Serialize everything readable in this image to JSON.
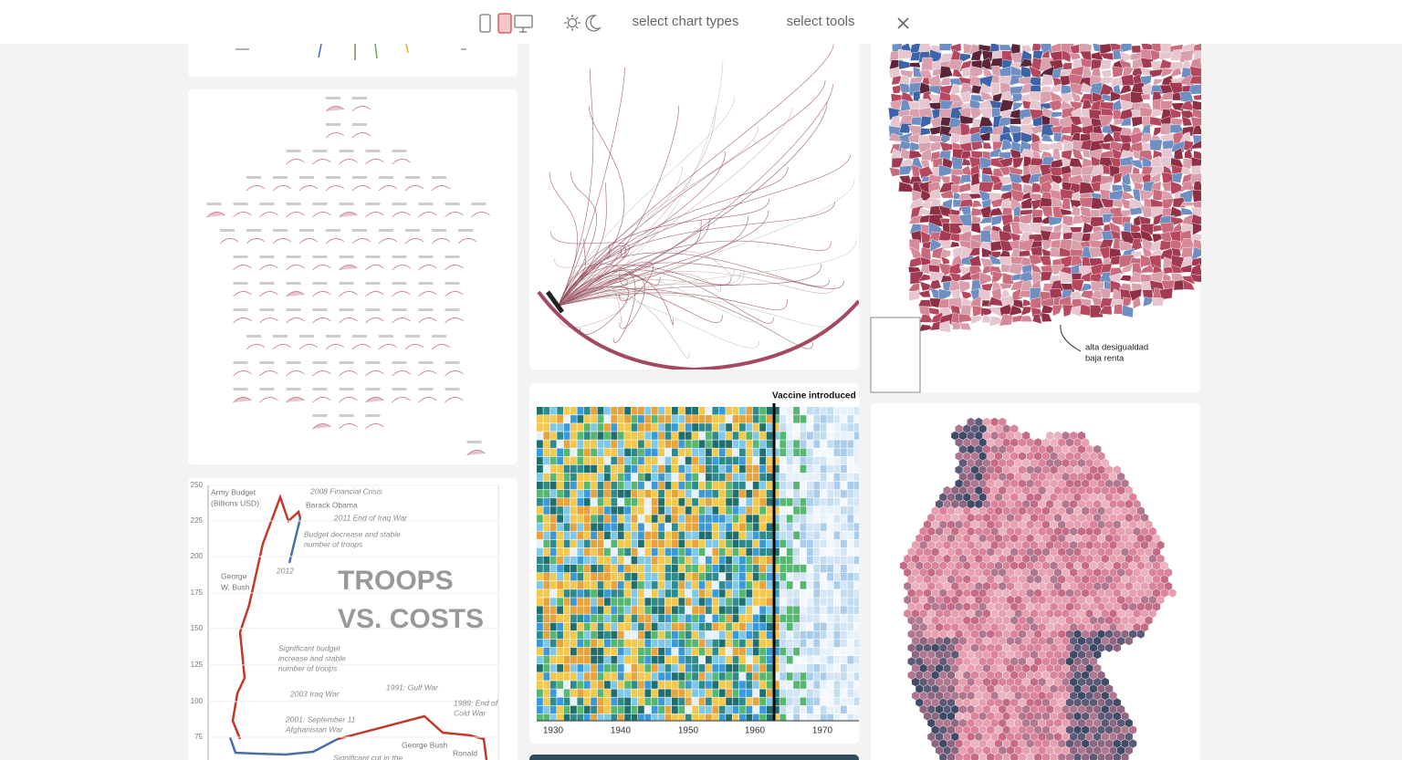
{
  "header": {
    "chart_types": "select chart types",
    "tools": "select tools"
  },
  "troops": {
    "title_1": "TROOPS",
    "title_2": "VS. COSTS",
    "axis_1": "Army Budget",
    "axis_2": "(Billions USD)",
    "yticks": [
      250,
      225,
      200,
      175,
      150,
      125,
      100,
      75
    ],
    "notes": [
      "2008 Financial Crisis",
      "Barack Obama",
      "2011 End of Iraq War",
      "Budget decrease and stable",
      "number of troops",
      "2012",
      "George",
      "W. Bush",
      "Significant budget",
      "increase and stable",
      "number of troops",
      "2003 Iraq War",
      "1991: Gulf War",
      "1989: End of",
      "Cold War",
      "2001: September 11",
      "Afghanistan War",
      "George Bush",
      "Ronald",
      "Significant cut in the"
    ]
  },
  "heatmap": {
    "title": "Vaccine introduced",
    "xticks": [
      1930,
      1940,
      1950,
      1960,
      1970
    ]
  },
  "map": {
    "note_1": "alta desigualdad",
    "note_2": "baja renta"
  }
}
